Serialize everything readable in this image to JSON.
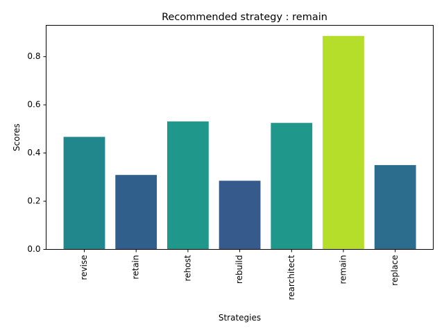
{
  "chart_data": {
    "type": "bar",
    "title": "Recommended strategy : remain",
    "xlabel": "Strategies",
    "ylabel": "Scores",
    "categories": [
      "revise",
      "retain",
      "rehost",
      "rebuild",
      "rearchitect",
      "remain",
      "replace"
    ],
    "values": [
      0.467,
      0.309,
      0.531,
      0.285,
      0.525,
      0.886,
      0.35
    ],
    "colors": [
      "#21878d",
      "#2f5f8a",
      "#1f978b",
      "#355a8b",
      "#1f988b",
      "#b5de2b",
      "#2c6d8e"
    ],
    "ylim": [
      0,
      0.93
    ],
    "yticks": [
      0.0,
      0.2,
      0.4,
      0.6,
      0.8
    ],
    "ytick_labels": [
      "0.0",
      "0.2",
      "0.4",
      "0.6",
      "0.8"
    ],
    "grid": false,
    "legend": "none"
  }
}
